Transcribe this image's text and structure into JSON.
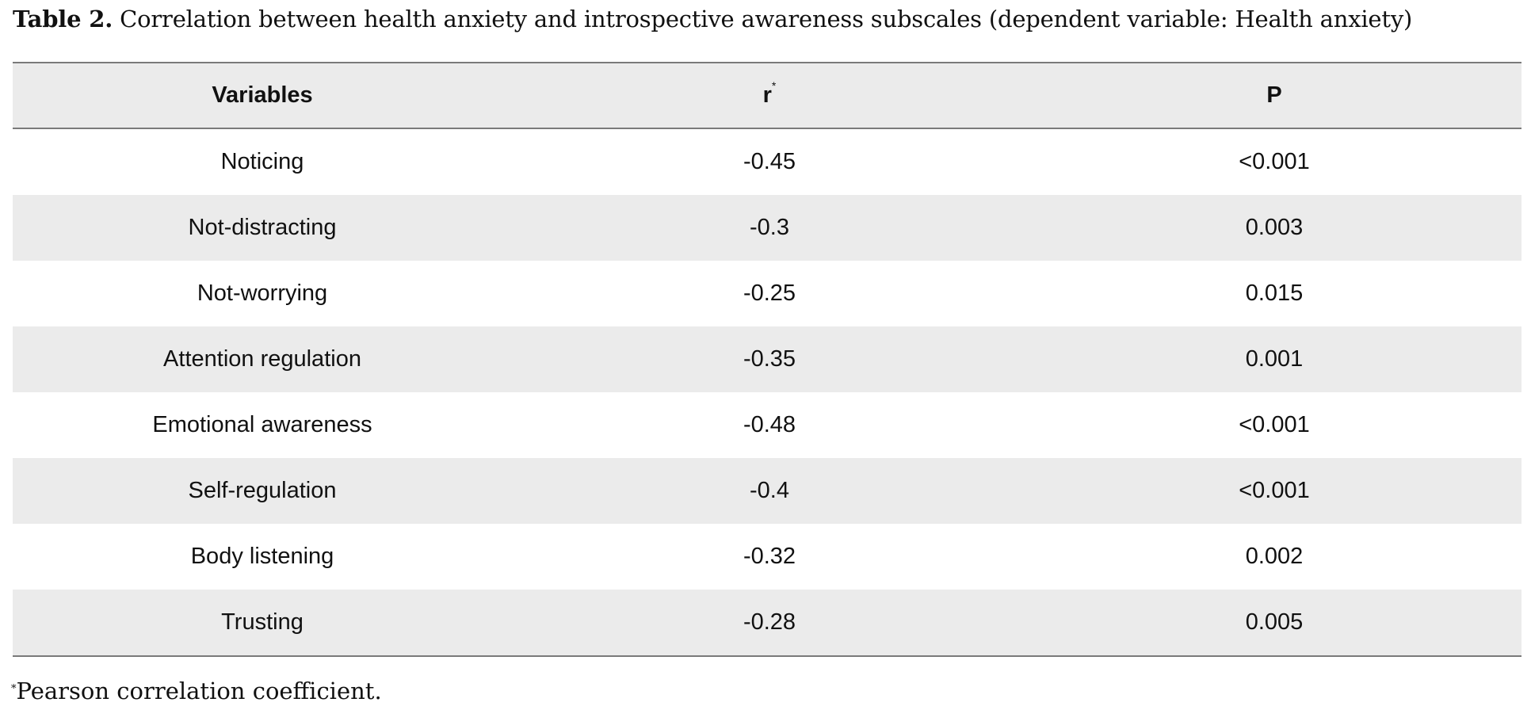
{
  "caption": {
    "label": "Table 2.",
    "text": " Correlation between health anxiety and introspective awareness subscales (dependent variable: Health anxiety)"
  },
  "table": {
    "headers": {
      "variables": "Variables",
      "r": "r",
      "r_mark": "*",
      "p": "P"
    },
    "rows": [
      {
        "variable": "Noticing",
        "r": "-0.45",
        "p": "<0.001"
      },
      {
        "variable": "Not-distracting",
        "r": "-0.3",
        "p": "0.003"
      },
      {
        "variable": "Not-worrying",
        "r": "-0.25",
        "p": "0.015"
      },
      {
        "variable": "Attention regulation",
        "r": "-0.35",
        "p": "0.001"
      },
      {
        "variable": "Emotional awareness",
        "r": "-0.48",
        "p": "<0.001"
      },
      {
        "variable": "Self-regulation",
        "r": "-0.4",
        "p": "<0.001"
      },
      {
        "variable": "Body listening",
        "r": "-0.32",
        "p": "0.002"
      },
      {
        "variable": "Trusting",
        "r": "-0.28",
        "p": "0.005"
      }
    ]
  },
  "footnote": {
    "mark": "*",
    "text": "Pearson correlation coefficient."
  },
  "colors": {
    "shade": "#ebebeb",
    "rule": "#7a7a7a"
  }
}
